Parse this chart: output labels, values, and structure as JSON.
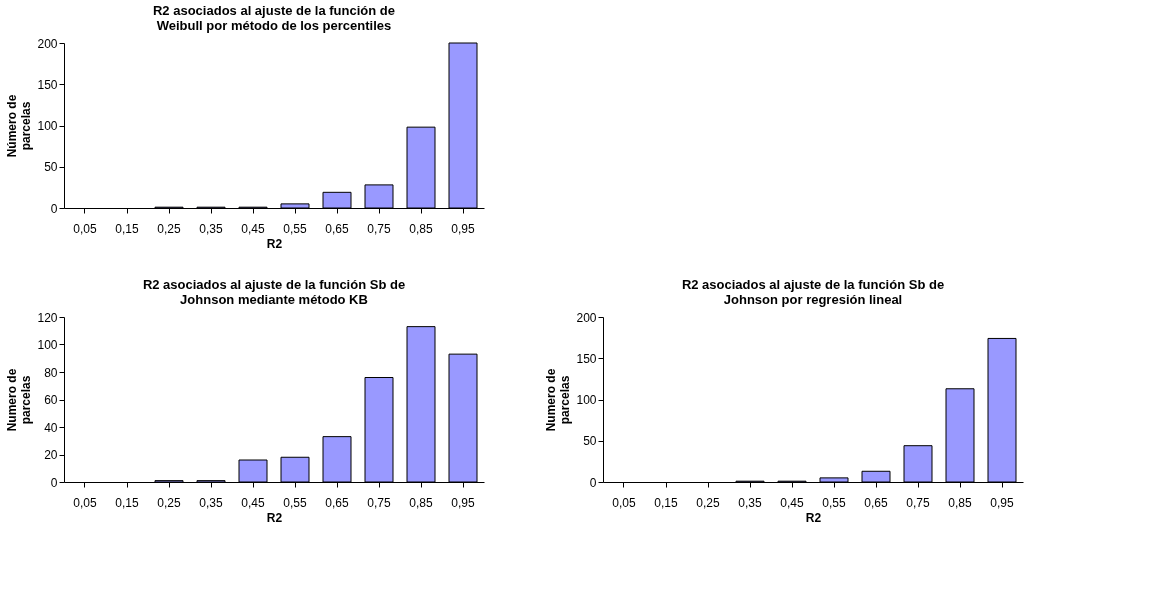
{
  "chart_data": [
    {
      "type": "bar",
      "title": "R2 asociados al ajuste de la función de\nWeibull por método de los percentiles",
      "xlabel": "R2",
      "ylabel": "Número de\nparcelas",
      "categories": [
        "0,05",
        "0,15",
        "0,25",
        "0,35",
        "0,45",
        "0,55",
        "0,65",
        "0,75",
        "0,85",
        "0,95"
      ],
      "values": [
        0,
        0,
        1,
        1,
        1,
        5,
        19,
        28,
        98,
        200
      ],
      "color": "#9999ff",
      "ylim": [
        0,
        200
      ],
      "yticks": [
        0,
        50,
        100,
        150,
        200
      ],
      "grid": false,
      "legend": false
    },
    {
      "type": "bar",
      "title": "R2 asociados al ajuste de la función Sb de\nJohnson mediante método KB",
      "xlabel": "R2",
      "ylabel": "Numero de\nparcelas",
      "categories": [
        "0,05",
        "0,15",
        "0,25",
        "0,35",
        "0,45",
        "0,55",
        "0,65",
        "0,75",
        "0,85",
        "0,95"
      ],
      "values": [
        0,
        0,
        1,
        1,
        16,
        18,
        33,
        76,
        113,
        93
      ],
      "color": "#9999ff",
      "ylim": [
        0,
        120
      ],
      "yticks": [
        0,
        20,
        40,
        60,
        80,
        100,
        120
      ],
      "grid": false,
      "legend": false
    },
    {
      "type": "bar",
      "title": "R2 asociados al ajuste de la función Sb de\nJohnson por regresión lineal",
      "xlabel": "R2",
      "ylabel": "Numero de\nparcelas",
      "categories": [
        "0,05",
        "0,15",
        "0,25",
        "0,35",
        "0,45",
        "0,55",
        "0,65",
        "0,75",
        "0,85",
        "0,95"
      ],
      "values": [
        0,
        0,
        0,
        1,
        1,
        5,
        13,
        44,
        113,
        174
      ],
      "color": "#9999ff",
      "ylim": [
        0,
        200
      ],
      "yticks": [
        0,
        50,
        100,
        150,
        200
      ],
      "grid": false,
      "legend": false
    }
  ]
}
